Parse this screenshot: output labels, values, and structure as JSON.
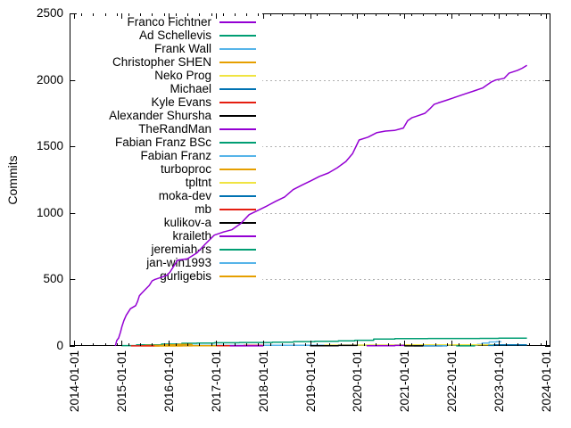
{
  "chart_data": {
    "type": "line",
    "title": "",
    "xlabel": "",
    "ylabel": "Commits",
    "x_axis": {
      "range_years": [
        2013.9,
        2024.1
      ],
      "tick_years": [
        2014,
        2015,
        2016,
        2017,
        2018,
        2019,
        2020,
        2021,
        2022,
        2023,
        2024
      ],
      "tick_labels": [
        "2014-01-01",
        "2015-01-01",
        "2016-01-01",
        "2017-01-01",
        "2018-01-01",
        "2019-01-01",
        "2020-01-01",
        "2021-01-01",
        "2022-01-01",
        "2023-01-01",
        "2024-01-01"
      ],
      "minor_tick_interval_years": 0.25
    },
    "y_axis": {
      "range": [
        0,
        2500
      ],
      "ticks": [
        0,
        500,
        1000,
        1500,
        2000,
        2500
      ],
      "tick_labels": [
        "0",
        "500",
        "1000",
        "1500",
        "2000",
        "2500"
      ],
      "grid_at": [
        500,
        1000,
        1500,
        2000
      ]
    },
    "grid": {
      "show": true,
      "color": "#b0b0b0",
      "style": "dotted"
    },
    "legend": {
      "position": "top-left-inside",
      "opaque": true
    },
    "series": [
      {
        "name": "Franco Fichtner",
        "color": "#9400d3",
        "step": false,
        "points": [
          [
            2014.87,
            0
          ],
          [
            2014.9,
            40
          ],
          [
            2014.94,
            60
          ],
          [
            2014.98,
            105
          ],
          [
            2015.01,
            147
          ],
          [
            2015.05,
            190
          ],
          [
            2015.1,
            230
          ],
          [
            2015.19,
            280
          ],
          [
            2015.3,
            303
          ],
          [
            2015.34,
            333
          ],
          [
            2015.38,
            377
          ],
          [
            2015.42,
            393
          ],
          [
            2015.5,
            422
          ],
          [
            2015.59,
            455
          ],
          [
            2015.65,
            489
          ],
          [
            2015.71,
            500
          ],
          [
            2015.85,
            517
          ],
          [
            2015.97,
            533
          ],
          [
            2016.03,
            556
          ],
          [
            2016.13,
            611
          ],
          [
            2016.19,
            645
          ],
          [
            2016.4,
            655
          ],
          [
            2016.6,
            700
          ],
          [
            2016.78,
            767
          ],
          [
            2016.97,
            833
          ],
          [
            2017.15,
            855
          ],
          [
            2017.34,
            873
          ],
          [
            2017.53,
            920
          ],
          [
            2017.71,
            987
          ],
          [
            2017.9,
            1020
          ],
          [
            2018.09,
            1053
          ],
          [
            2018.27,
            1087
          ],
          [
            2018.46,
            1120
          ],
          [
            2018.64,
            1175
          ],
          [
            2018.83,
            1209
          ],
          [
            2019.02,
            1242
          ],
          [
            2019.2,
            1275
          ],
          [
            2019.39,
            1300
          ],
          [
            2019.58,
            1340
          ],
          [
            2019.76,
            1387
          ],
          [
            2019.9,
            1445
          ],
          [
            2020.04,
            1548
          ],
          [
            2020.23,
            1570
          ],
          [
            2020.42,
            1604
          ],
          [
            2020.6,
            1615
          ],
          [
            2020.79,
            1620
          ],
          [
            2020.98,
            1638
          ],
          [
            2021.07,
            1693
          ],
          [
            2021.16,
            1715
          ],
          [
            2021.26,
            1727
          ],
          [
            2021.44,
            1749
          ],
          [
            2021.54,
            1782
          ],
          [
            2021.63,
            1816
          ],
          [
            2021.72,
            1827
          ],
          [
            2021.91,
            1849
          ],
          [
            2022.1,
            1872
          ],
          [
            2022.28,
            1894
          ],
          [
            2022.47,
            1916
          ],
          [
            2022.66,
            1939
          ],
          [
            2022.75,
            1961
          ],
          [
            2022.84,
            1983
          ],
          [
            2022.94,
            1999
          ],
          [
            2023.12,
            2012
          ],
          [
            2023.22,
            2050
          ],
          [
            2023.4,
            2072
          ],
          [
            2023.5,
            2088
          ],
          [
            2023.6,
            2110
          ]
        ]
      },
      {
        "name": "Ad Schellevis",
        "color": "#009e73",
        "step": true,
        "points": [
          [
            2015.0,
            3
          ],
          [
            2015.32,
            8
          ],
          [
            2015.85,
            14
          ],
          [
            2016.28,
            20
          ],
          [
            2016.6,
            22
          ],
          [
            2016.97,
            24
          ],
          [
            2017.5,
            26
          ],
          [
            2018.2,
            28
          ],
          [
            2018.65,
            33
          ],
          [
            2019.1,
            35
          ],
          [
            2019.6,
            38
          ],
          [
            2019.95,
            43
          ],
          [
            2020.35,
            52
          ],
          [
            2020.8,
            55
          ],
          [
            2021.5,
            56
          ],
          [
            2022.6,
            57
          ],
          [
            2023.0,
            58
          ],
          [
            2023.6,
            58
          ]
        ]
      },
      {
        "name": "Frank Wall",
        "color": "#56b4e9",
        "step": true,
        "points": [
          [
            2015.3,
            2
          ],
          [
            2016.5,
            4
          ],
          [
            2018.0,
            5
          ],
          [
            2020.0,
            6
          ],
          [
            2022.55,
            12
          ],
          [
            2022.65,
            22
          ],
          [
            2022.8,
            30
          ],
          [
            2022.95,
            33
          ],
          [
            2023.05,
            34
          ]
        ]
      },
      {
        "name": "Christopher SHEN",
        "color": "#e69f00",
        "step": true,
        "points": [
          [
            2015.5,
            4
          ],
          [
            2015.9,
            9
          ],
          [
            2016.2,
            12
          ],
          [
            2016.5,
            13
          ]
        ]
      },
      {
        "name": "Neko Prog",
        "color": "#f0e442",
        "step": true,
        "points": [
          [
            2019.3,
            6
          ],
          [
            2020.0,
            7
          ],
          [
            2021.0,
            8
          ],
          [
            2022.0,
            8
          ],
          [
            2023.6,
            8
          ]
        ]
      },
      {
        "name": "Michael",
        "color": "#0072b2",
        "step": true,
        "points": [
          [
            2022.78,
            4
          ],
          [
            2022.9,
            8
          ],
          [
            2023.05,
            9
          ],
          [
            2023.6,
            9
          ]
        ]
      },
      {
        "name": "Kyle Evans",
        "color": "#e51e10",
        "step": true,
        "points": [
          [
            2017.0,
            2
          ],
          [
            2017.6,
            4
          ],
          [
            2018.0,
            5
          ]
        ]
      },
      {
        "name": "Alexander Shursha",
        "color": "#000000",
        "step": true,
        "points": [
          [
            2019.0,
            2
          ],
          [
            2019.6,
            4
          ],
          [
            2020.0,
            4
          ]
        ]
      },
      {
        "name": "TheRandMan",
        "color": "#9400d3",
        "step": true,
        "points": [
          [
            2020.2,
            2
          ],
          [
            2020.8,
            4
          ],
          [
            2021.0,
            4
          ]
        ]
      },
      {
        "name": "Fabian Franz BSc",
        "color": "#009e73",
        "step": true,
        "points": [
          [
            2016.1,
            2
          ],
          [
            2016.6,
            3
          ]
        ]
      },
      {
        "name": "Fabian Franz",
        "color": "#56b4e9",
        "step": true,
        "points": [
          [
            2016.3,
            2
          ],
          [
            2016.8,
            3
          ]
        ]
      },
      {
        "name": "turboproc",
        "color": "#e69f00",
        "step": true,
        "points": [
          [
            2015.4,
            1
          ],
          [
            2016.5,
            2
          ],
          [
            2017.0,
            3
          ]
        ]
      },
      {
        "name": "tpltnt",
        "color": "#f0e442",
        "step": true,
        "points": [
          [
            2015.6,
            1
          ],
          [
            2016.2,
            2
          ]
        ]
      },
      {
        "name": "moka-dev",
        "color": "#0072b2",
        "step": true,
        "points": [
          [
            2021.2,
            1
          ],
          [
            2021.9,
            2
          ]
        ]
      },
      {
        "name": "mb",
        "color": "#e51e10",
        "step": true,
        "points": [
          [
            2015.2,
            1
          ],
          [
            2015.8,
            2
          ]
        ]
      },
      {
        "name": "kulikov-a",
        "color": "#000000",
        "step": true,
        "points": [
          [
            2021.0,
            1
          ],
          [
            2021.8,
            2
          ]
        ]
      },
      {
        "name": "kraileth",
        "color": "#9400d3",
        "step": true,
        "points": [
          [
            2017.3,
            1
          ],
          [
            2018.0,
            2
          ]
        ]
      },
      {
        "name": "jeremiah-rs",
        "color": "#009e73",
        "step": true,
        "points": [
          [
            2022.1,
            1
          ],
          [
            2022.5,
            1
          ]
        ]
      },
      {
        "name": "jan-win1993",
        "color": "#56b4e9",
        "step": true,
        "points": [
          [
            2021.4,
            1
          ],
          [
            2021.9,
            1
          ]
        ]
      },
      {
        "name": "gurligebis",
        "color": "#e69f00",
        "step": true,
        "points": [
          [
            2015.7,
            1
          ],
          [
            2016.3,
            1
          ]
        ]
      }
    ]
  }
}
